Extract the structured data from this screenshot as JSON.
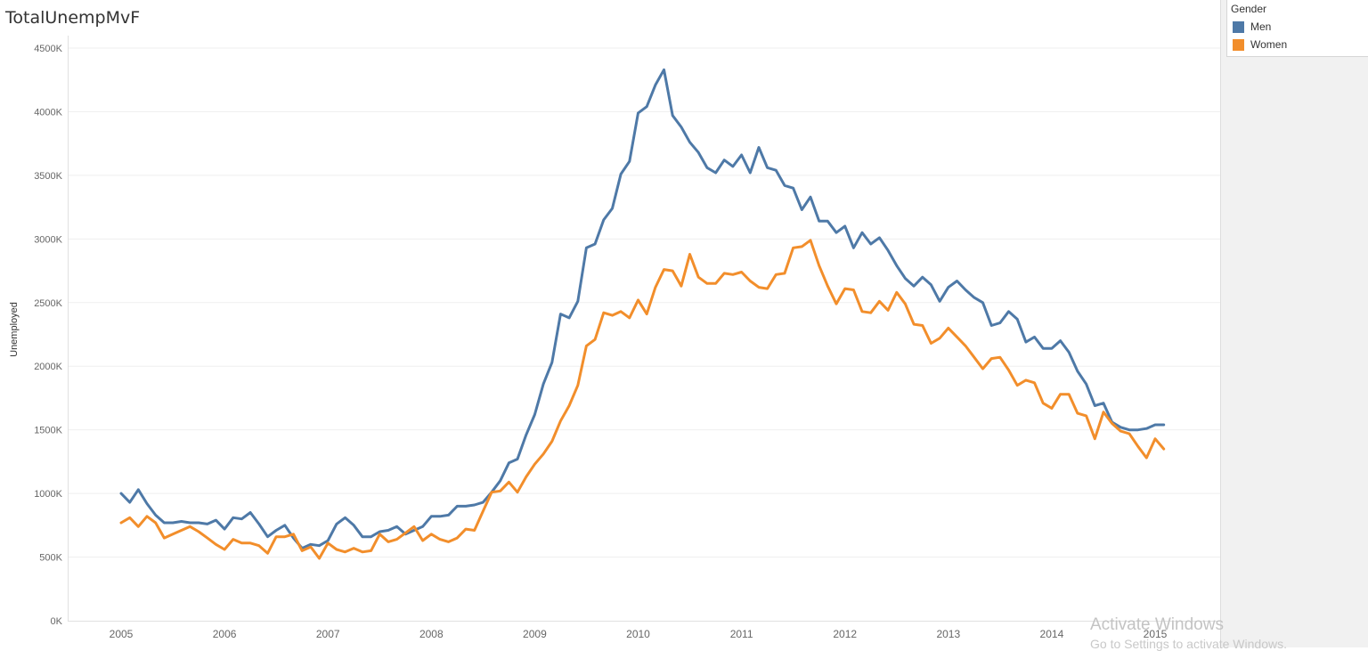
{
  "chart_data": {
    "type": "line",
    "title": "TotalUnempMvF",
    "ylabel": "Unemployed",
    "xlabel": "",
    "x_tick_labels": [
      "2005",
      "2006",
      "2007",
      "2008",
      "2009",
      "2010",
      "2011",
      "2012",
      "2013",
      "2014",
      "2015"
    ],
    "y_tick_labels": [
      "0K",
      "500K",
      "1000K",
      "1500K",
      "2000K",
      "2500K",
      "3000K",
      "3500K",
      "4000K",
      "4500K"
    ],
    "ylim": [
      0,
      4500
    ],
    "y_unit": "thousands",
    "x_start": "2005-01",
    "x_frequency": "monthly",
    "grid": "horizontal",
    "legend_title": "Gender",
    "legend_position": "top-right",
    "series": [
      {
        "name": "Men",
        "color": "#4e79a7",
        "values": [
          1000,
          930,
          1030,
          920,
          830,
          770,
          770,
          780,
          770,
          770,
          760,
          790,
          720,
          810,
          800,
          850,
          760,
          660,
          710,
          750,
          650,
          570,
          600,
          590,
          630,
          760,
          810,
          750,
          660,
          660,
          700,
          710,
          740,
          680,
          710,
          740,
          820,
          820,
          830,
          900,
          900,
          910,
          930,
          1010,
          1100,
          1240,
          1270,
          1460,
          1620,
          1860,
          2030,
          2410,
          2380,
          2510,
          2930,
          2960,
          3150,
          3240,
          3510,
          3610,
          3990,
          4040,
          4210,
          4330,
          3970,
          3880,
          3760,
          3680,
          3560,
          3520,
          3620,
          3570,
          3660,
          3520,
          3720,
          3560,
          3540,
          3420,
          3400,
          3230,
          3330,
          3140,
          3140,
          3050,
          3100,
          2930,
          3050,
          2960,
          3010,
          2910,
          2790,
          2690,
          2630,
          2700,
          2640,
          2510,
          2620,
          2670,
          2600,
          2540,
          2500,
          2320,
          2340,
          2430,
          2370,
          2190,
          2230,
          2140,
          2140,
          2200,
          2110,
          1960,
          1860,
          1690,
          1710,
          1560,
          1520,
          1500,
          1500,
          1510,
          1540,
          1540
        ]
      },
      {
        "name": "Women",
        "color": "#f28e2b",
        "values": [
          770,
          810,
          740,
          820,
          770,
          650,
          680,
          710,
          740,
          700,
          650,
          600,
          560,
          640,
          610,
          610,
          590,
          530,
          660,
          660,
          680,
          550,
          580,
          490,
          610,
          560,
          540,
          570,
          540,
          550,
          680,
          620,
          640,
          690,
          740,
          630,
          680,
          640,
          620,
          650,
          720,
          710,
          860,
          1010,
          1020,
          1090,
          1010,
          1130,
          1230,
          1310,
          1410,
          1570,
          1690,
          1850,
          2160,
          2210,
          2420,
          2400,
          2430,
          2380,
          2520,
          2410,
          2620,
          2760,
          2750,
          2630,
          2880,
          2700,
          2650,
          2650,
          2730,
          2720,
          2740,
          2670,
          2620,
          2610,
          2720,
          2730,
          2930,
          2940,
          2990,
          2790,
          2630,
          2490,
          2610,
          2600,
          2430,
          2420,
          2510,
          2440,
          2580,
          2490,
          2330,
          2320,
          2180,
          2220,
          2300,
          2230,
          2160,
          2070,
          1980,
          2060,
          2070,
          1970,
          1850,
          1890,
          1870,
          1710,
          1670,
          1780,
          1780,
          1630,
          1610,
          1430,
          1640,
          1550,
          1490,
          1470,
          1370,
          1280,
          1430,
          1350
        ]
      }
    ]
  },
  "watermark": {
    "line1": "Activate Windows",
    "line2": "Go to Settings to activate Windows."
  }
}
